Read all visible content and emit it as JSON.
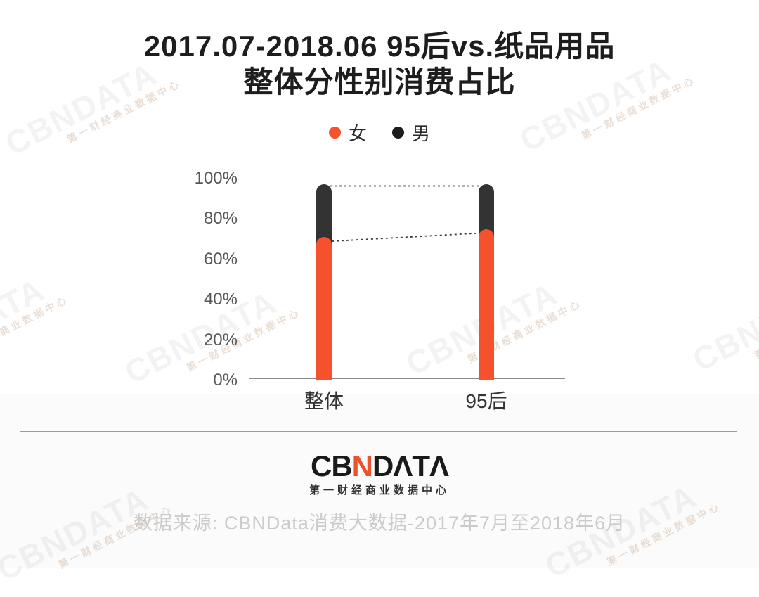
{
  "title": {
    "line1": "2017.07-2018.06 95后vs.纸品用品",
    "line2": "整体分性别消费占比"
  },
  "legend": {
    "items": [
      {
        "label": "女",
        "color": "#F4512C"
      },
      {
        "label": "男",
        "color": "#1d1d1d"
      }
    ]
  },
  "chart_data": {
    "type": "bar",
    "stacked": true,
    "title": "2017.07-2018.06 95后vs.纸品用品 整体分性别消费占比",
    "categories": [
      "整体",
      "95后"
    ],
    "series": [
      {
        "name": "女",
        "color": "#F4512C",
        "values": [
          70,
          74
        ]
      },
      {
        "name": "男",
        "color": "#333333",
        "values": [
          26,
          22
        ]
      }
    ],
    "stack_top_percent": 96,
    "y_ticks": [
      "100%",
      "80%",
      "60%",
      "40%",
      "20%",
      "0%"
    ],
    "ylim": [
      0,
      100
    ],
    "grid": false,
    "legend_position": "top-center",
    "annotations": "dashed connector lines join the tops of corresponding bar segments",
    "connector_color": "#3a3a3a"
  },
  "footer": {
    "logo": {
      "part_cb": "CB",
      "part_n": "N",
      "part_data": "DΛTΛ",
      "accent_color": "#E9532E",
      "subtitle": "第一财经商业数据中心"
    },
    "source": "数据来源: CBNData消费大数据-2017年7月至2018年6月"
  },
  "watermark": {
    "text": "CBNDATA",
    "subtext": "第一财经商业数据中心"
  }
}
